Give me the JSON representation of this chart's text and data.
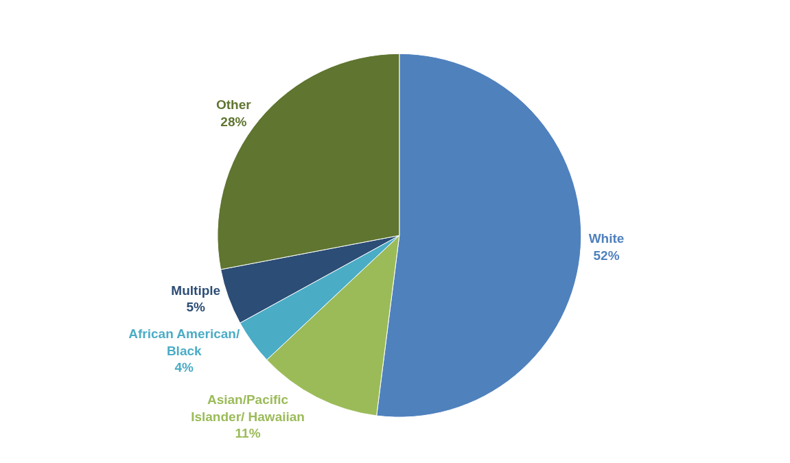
{
  "chart_data": {
    "type": "pie",
    "categories": [
      "White",
      "Asian/Pacific\nIslander/ Hawaiian",
      "African American/\nBlack",
      "Multiple",
      "Other"
    ],
    "values": [
      52,
      11,
      4,
      5,
      28
    ],
    "value_labels": [
      "52%",
      "11%",
      "4%",
      "5%",
      "28%"
    ],
    "colors": [
      "#4f81bd",
      "#9bbb59",
      "#4bacc6",
      "#2c4d75",
      "#5f7530"
    ],
    "legend": false
  }
}
